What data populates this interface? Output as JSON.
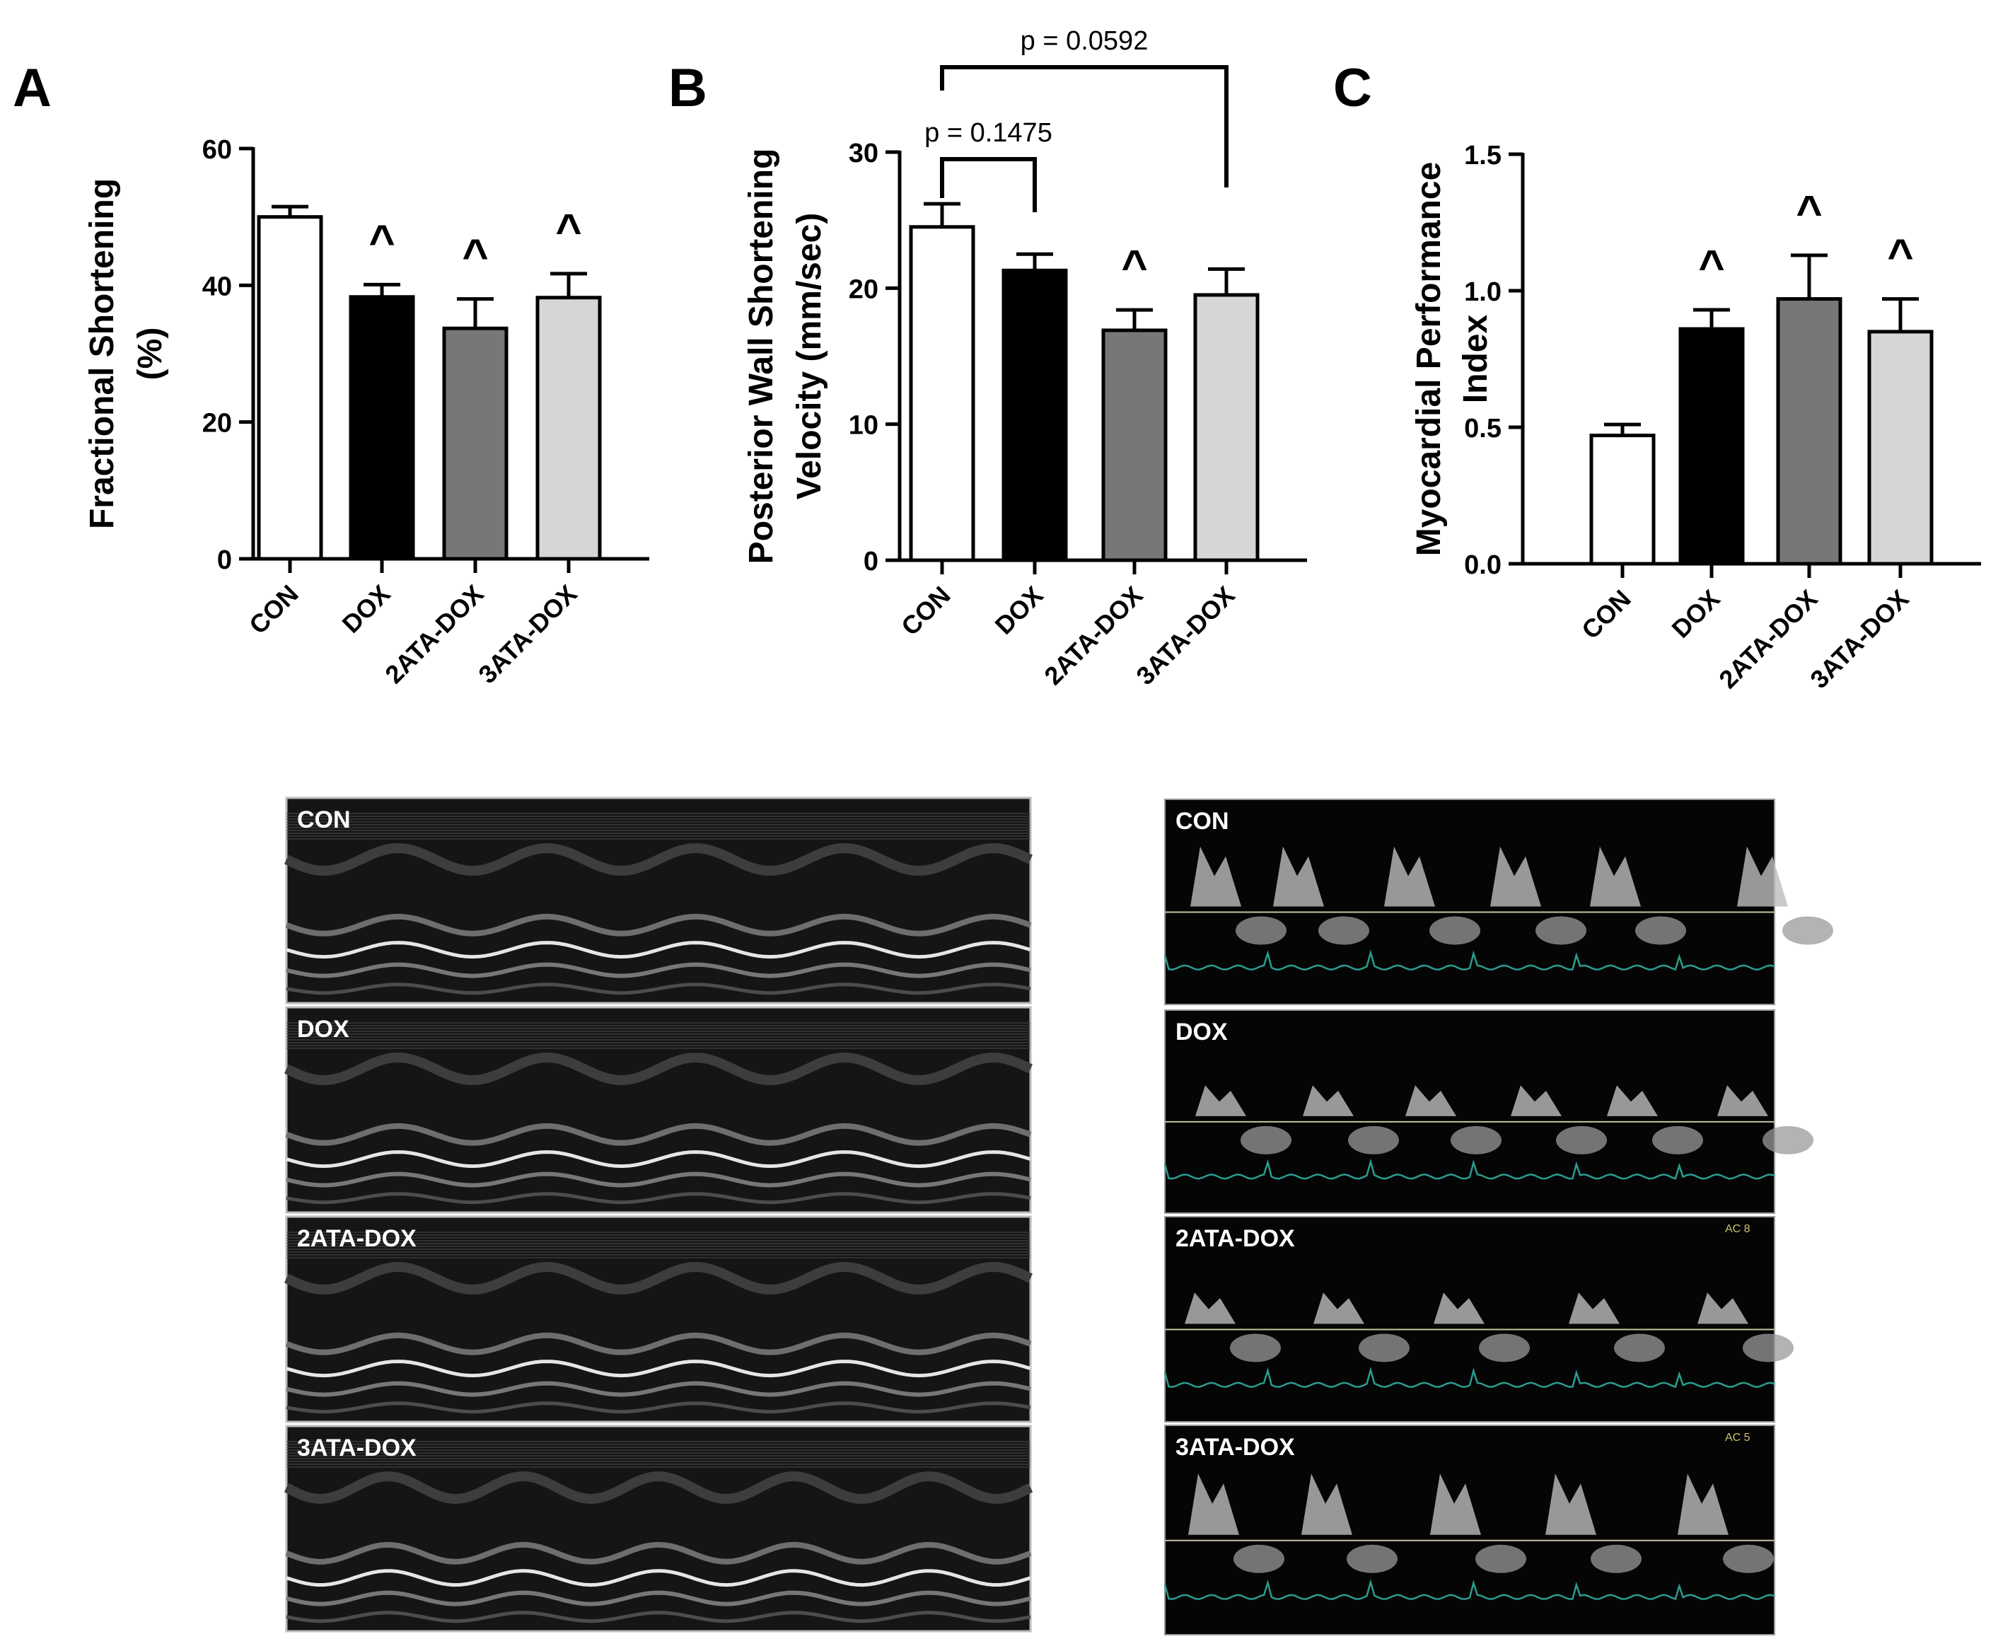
{
  "chart_data": [
    {
      "panel": "A",
      "type": "bar",
      "ylabel_lines": [
        "Fractional Shortening",
        "(%)"
      ],
      "categories": [
        "CON",
        "DOX",
        "2ATA-DOX",
        "3ATA-DOX"
      ],
      "values": [
        50,
        38.3,
        33.7,
        38.2
      ],
      "errors": [
        1.5,
        1.8,
        4.3,
        3.5
      ],
      "markers": [
        "",
        "^",
        "^",
        "^"
      ],
      "ylim": [
        0,
        60
      ],
      "yticks": [
        "0",
        "20",
        "40",
        "60"
      ],
      "bar_colors": [
        "#ffffff",
        "#000000",
        "#777777",
        "#d6d6d6"
      ],
      "significance": []
    },
    {
      "panel": "B",
      "type": "bar",
      "ylabel_lines": [
        "Posterior Wall Shortening",
        "Velocity (mm/sec)"
      ],
      "categories": [
        "CON",
        "DOX",
        "2ATA-DOX",
        "3ATA-DOX"
      ],
      "values": [
        24.5,
        21.3,
        16.9,
        19.5
      ],
      "errors": [
        1.7,
        1.2,
        1.5,
        1.9
      ],
      "markers": [
        "",
        "",
        "^",
        ""
      ],
      "ylim": [
        0,
        30
      ],
      "yticks": [
        "0",
        "10",
        "20",
        "30"
      ],
      "bar_colors": [
        "#ffffff",
        "#000000",
        "#777777",
        "#d6d6d6"
      ],
      "significance": [
        {
          "from": 0,
          "to": 1,
          "label": "p = 0.1475"
        },
        {
          "from": 0,
          "to": 3,
          "label": "p = 0.0592"
        }
      ]
    },
    {
      "panel": "C",
      "type": "bar",
      "ylabel_lines": [
        "Myocardial Performance",
        "Index"
      ],
      "categories": [
        "CON",
        "DOX",
        "2ATA-DOX",
        "3ATA-DOX"
      ],
      "values": [
        0.47,
        0.86,
        0.97,
        0.85
      ],
      "errors": [
        0.04,
        0.07,
        0.16,
        0.12
      ],
      "markers": [
        "",
        "^",
        "^",
        "^"
      ],
      "ylim": [
        0,
        1.5
      ],
      "yticks": [
        "0.0",
        "0.5",
        "1.0",
        "1.5"
      ],
      "bar_colors": [
        "#ffffff",
        "#000000",
        "#777777",
        "#d6d6d6"
      ],
      "significance": []
    }
  ],
  "mmode_panels": [
    {
      "label": "CON"
    },
    {
      "label": "DOX"
    },
    {
      "label": "2ATA-DOX"
    },
    {
      "label": "3ATA-DOX"
    }
  ],
  "doppler_panels": [
    {
      "label": "CON",
      "corner": ""
    },
    {
      "label": "DOX",
      "corner": ""
    },
    {
      "label": "2ATA-DOX",
      "corner": "AC 8"
    },
    {
      "label": "3ATA-DOX",
      "corner": "AC 5"
    }
  ],
  "colors": {
    "ecg_trace": "#2a9d8f",
    "baseline": "#c8c2a0",
    "corner_text": "#c9c46a"
  }
}
